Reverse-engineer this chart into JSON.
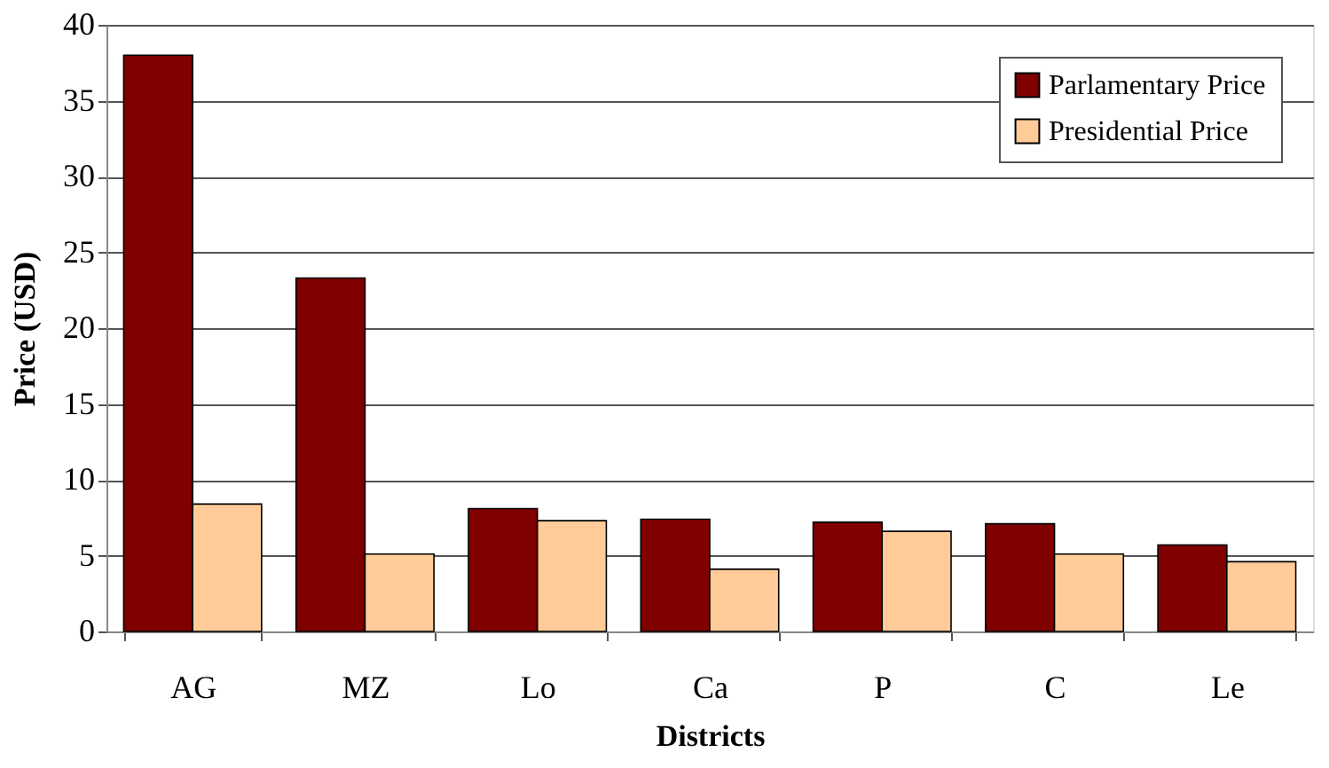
{
  "chart_data": {
    "type": "bar",
    "xlabel": "Districts",
    "ylabel": "Price (USD)",
    "categories": [
      "AG",
      "MZ",
      "Lo",
      "Ca",
      "P",
      "C",
      "Le"
    ],
    "series": [
      {
        "name": "Parlamentary Price",
        "color": "#800000",
        "values": [
          38.0,
          23.3,
          8.1,
          7.4,
          7.2,
          7.1,
          5.7
        ]
      },
      {
        "name": "Presidential Price",
        "color": "#ffcc99",
        "values": [
          8.4,
          5.1,
          7.3,
          4.1,
          6.6,
          5.1,
          4.6
        ]
      }
    ],
    "ylim": [
      0,
      40
    ],
    "yticks": [
      0,
      5,
      10,
      15,
      20,
      25,
      30,
      35,
      40
    ],
    "grid": "y",
    "legend": "top right"
  }
}
